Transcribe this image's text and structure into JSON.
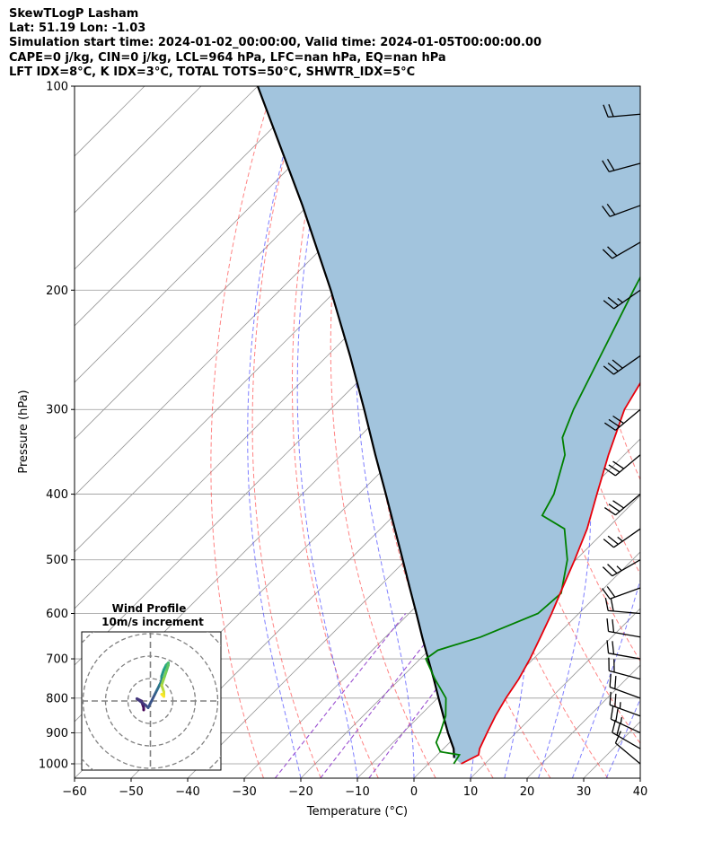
{
  "header": {
    "title": "SkewTLogP Lasham",
    "location": "Lat: 51.19   Lon: -1.03",
    "times": "Simulation start time: 2024-01-02_00:00:00, Valid time: 2024-01-05T00:00:00.00",
    "parameters": "CAPE=0 j/kg, CIN=0 j/kg, LCL=964 hPa, LFC=nan hPa, EQ=nan hPa",
    "indices": "LFT IDX=8$^\\circ$C, K IDX=3$^\\circ$C, TOTAL TOTS=50$^\\circ$C, SHWTR_IDX=5$^\\circ$C"
  },
  "chart_data": {
    "type": "line",
    "subtype": "skew-T log-P diagram",
    "xlabel": "Temperature ($^\\circ$C)",
    "ylabel": "Pressure (hPa)",
    "xlim": [
      -60,
      40
    ],
    "ylim": [
      1050,
      100
    ],
    "yscale": "log",
    "xticks": [
      -60,
      -50,
      -40,
      -30,
      -20,
      -10,
      0,
      10,
      20,
      30,
      40
    ],
    "xtick_labels": [
      "−60",
      "−50",
      "−40",
      "−30",
      "−20",
      "−10",
      "0",
      "10",
      "20",
      "30",
      "40"
    ],
    "yticks": [
      100,
      200,
      300,
      400,
      500,
      600,
      700,
      800,
      900,
      1000
    ],
    "grid": true,
    "colors": {
      "temperature": "#e8000b",
      "dewpoint": "#008000",
      "parcel": "#000000",
      "cin_shading": "#a2c4dd",
      "dry_adiabats": "#ff4040",
      "moist_adiabats": "#3a3aff",
      "mixing_ratio": "#9a4fd0",
      "isotherms": "#999999"
    },
    "series": [
      {
        "role": "temperature",
        "points": [
          [
            1000,
            5.8
          ],
          [
            970,
            7.3
          ],
          [
            950,
            6.4
          ],
          [
            900,
            4.9
          ],
          [
            850,
            3.4
          ],
          [
            800,
            2.1
          ],
          [
            750,
            1.0
          ],
          [
            700,
            -0.6
          ],
          [
            650,
            -2.6
          ],
          [
            600,
            -4.8
          ],
          [
            550,
            -7.4
          ],
          [
            500,
            -10.2
          ],
          [
            450,
            -13.5
          ],
          [
            400,
            -17.9
          ],
          [
            350,
            -22.8
          ],
          [
            300,
            -28.0
          ],
          [
            270,
            -30.2
          ],
          [
            250,
            -32.0
          ],
          [
            220,
            -35.5
          ],
          [
            200,
            -38.0
          ],
          [
            170,
            -41.5
          ],
          [
            150,
            -44.0
          ],
          [
            140,
            -44.8
          ],
          [
            120,
            -47.2
          ],
          [
            110,
            -48.7
          ],
          [
            100,
            -50.2
          ]
        ]
      },
      {
        "role": "dewpoint",
        "points": [
          [
            1000,
            4.5
          ],
          [
            970,
            3.9
          ],
          [
            960,
            0.0
          ],
          [
            930,
            -2.4
          ],
          [
            900,
            -3.4
          ],
          [
            850,
            -5.4
          ],
          [
            800,
            -8.5
          ],
          [
            750,
            -13.8
          ],
          [
            700,
            -19.0
          ],
          [
            680,
            -18.4
          ],
          [
            650,
            -13.2
          ],
          [
            600,
            -7.2
          ],
          [
            560,
            -6.7
          ],
          [
            500,
            -11.5
          ],
          [
            450,
            -17.5
          ],
          [
            430,
            -23.8
          ],
          [
            400,
            -25.5
          ],
          [
            350,
            -30.5
          ],
          [
            330,
            -34.0
          ],
          [
            300,
            -37.0
          ],
          [
            250,
            -41.7
          ],
          [
            200,
            -47.5
          ],
          [
            170,
            -51.5
          ],
          [
            150,
            -51.0
          ],
          [
            120,
            -51.8
          ],
          [
            100,
            -52.3
          ]
        ]
      },
      {
        "role": "parcel",
        "points": [
          [
            980,
            3.5
          ],
          [
            950,
            1.8
          ],
          [
            900,
            -2.0
          ],
          [
            850,
            -5.8
          ],
          [
            800,
            -9.8
          ],
          [
            750,
            -14.0
          ],
          [
            700,
            -18.6
          ],
          [
            650,
            -23.5
          ],
          [
            600,
            -28.7
          ],
          [
            550,
            -34.4
          ],
          [
            500,
            -40.6
          ],
          [
            450,
            -47.5
          ],
          [
            400,
            -55.2
          ],
          [
            350,
            -64.0
          ],
          [
            300,
            -74.0
          ],
          [
            250,
            -86.0
          ],
          [
            200,
            -101.0
          ],
          [
            150,
            -121.0
          ],
          [
            100,
            -150.0
          ]
        ]
      }
    ],
    "wind_barbs": [
      {
        "p": 1000,
        "speed_kt": 10,
        "dir_deg": 310
      },
      {
        "p": 950,
        "speed_kt": 20,
        "dir_deg": 300
      },
      {
        "p": 900,
        "speed_kt": 25,
        "dir_deg": 295
      },
      {
        "p": 850,
        "speed_kt": 25,
        "dir_deg": 290
      },
      {
        "p": 800,
        "speed_kt": 20,
        "dir_deg": 290
      },
      {
        "p": 750,
        "speed_kt": 20,
        "dir_deg": 285
      },
      {
        "p": 700,
        "speed_kt": 20,
        "dir_deg": 280
      },
      {
        "p": 650,
        "speed_kt": 20,
        "dir_deg": 280
      },
      {
        "p": 600,
        "speed_kt": 20,
        "dir_deg": 275
      },
      {
        "p": 550,
        "speed_kt": 20,
        "dir_deg": 250
      },
      {
        "p": 500,
        "speed_kt": 25,
        "dir_deg": 240
      },
      {
        "p": 450,
        "speed_kt": 25,
        "dir_deg": 235
      },
      {
        "p": 400,
        "speed_kt": 30,
        "dir_deg": 230
      },
      {
        "p": 350,
        "speed_kt": 30,
        "dir_deg": 230
      },
      {
        "p": 300,
        "speed_kt": 30,
        "dir_deg": 230
      },
      {
        "p": 250,
        "speed_kt": 30,
        "dir_deg": 235
      },
      {
        "p": 200,
        "speed_kt": 25,
        "dir_deg": 235
      },
      {
        "p": 170,
        "speed_kt": 20,
        "dir_deg": 240
      },
      {
        "p": 150,
        "speed_kt": 20,
        "dir_deg": 250
      },
      {
        "p": 130,
        "speed_kt": 20,
        "dir_deg": 255
      },
      {
        "p": 110,
        "speed_kt": 20,
        "dir_deg": 265
      }
    ],
    "hodograph": {
      "title": "Wind Profile",
      "subtitle": "10m/s increment",
      "ring_spacing_ms": 10,
      "colormap": "viridis",
      "uv": [
        [
          -3,
          -4
        ],
        [
          -3,
          -3
        ],
        [
          -4,
          0
        ],
        [
          -6,
          1
        ],
        [
          -2,
          -2
        ],
        [
          -1,
          -3
        ],
        [
          2,
          3
        ],
        [
          3,
          5
        ],
        [
          4,
          7
        ],
        [
          5,
          9
        ],
        [
          5,
          11
        ],
        [
          6,
          14
        ],
        [
          7,
          16
        ],
        [
          8,
          17
        ],
        [
          8,
          16
        ],
        [
          7,
          13
        ],
        [
          6,
          10
        ],
        [
          5,
          7
        ],
        [
          6,
          4
        ],
        [
          6,
          2
        ],
        [
          5,
          3
        ]
      ]
    }
  }
}
